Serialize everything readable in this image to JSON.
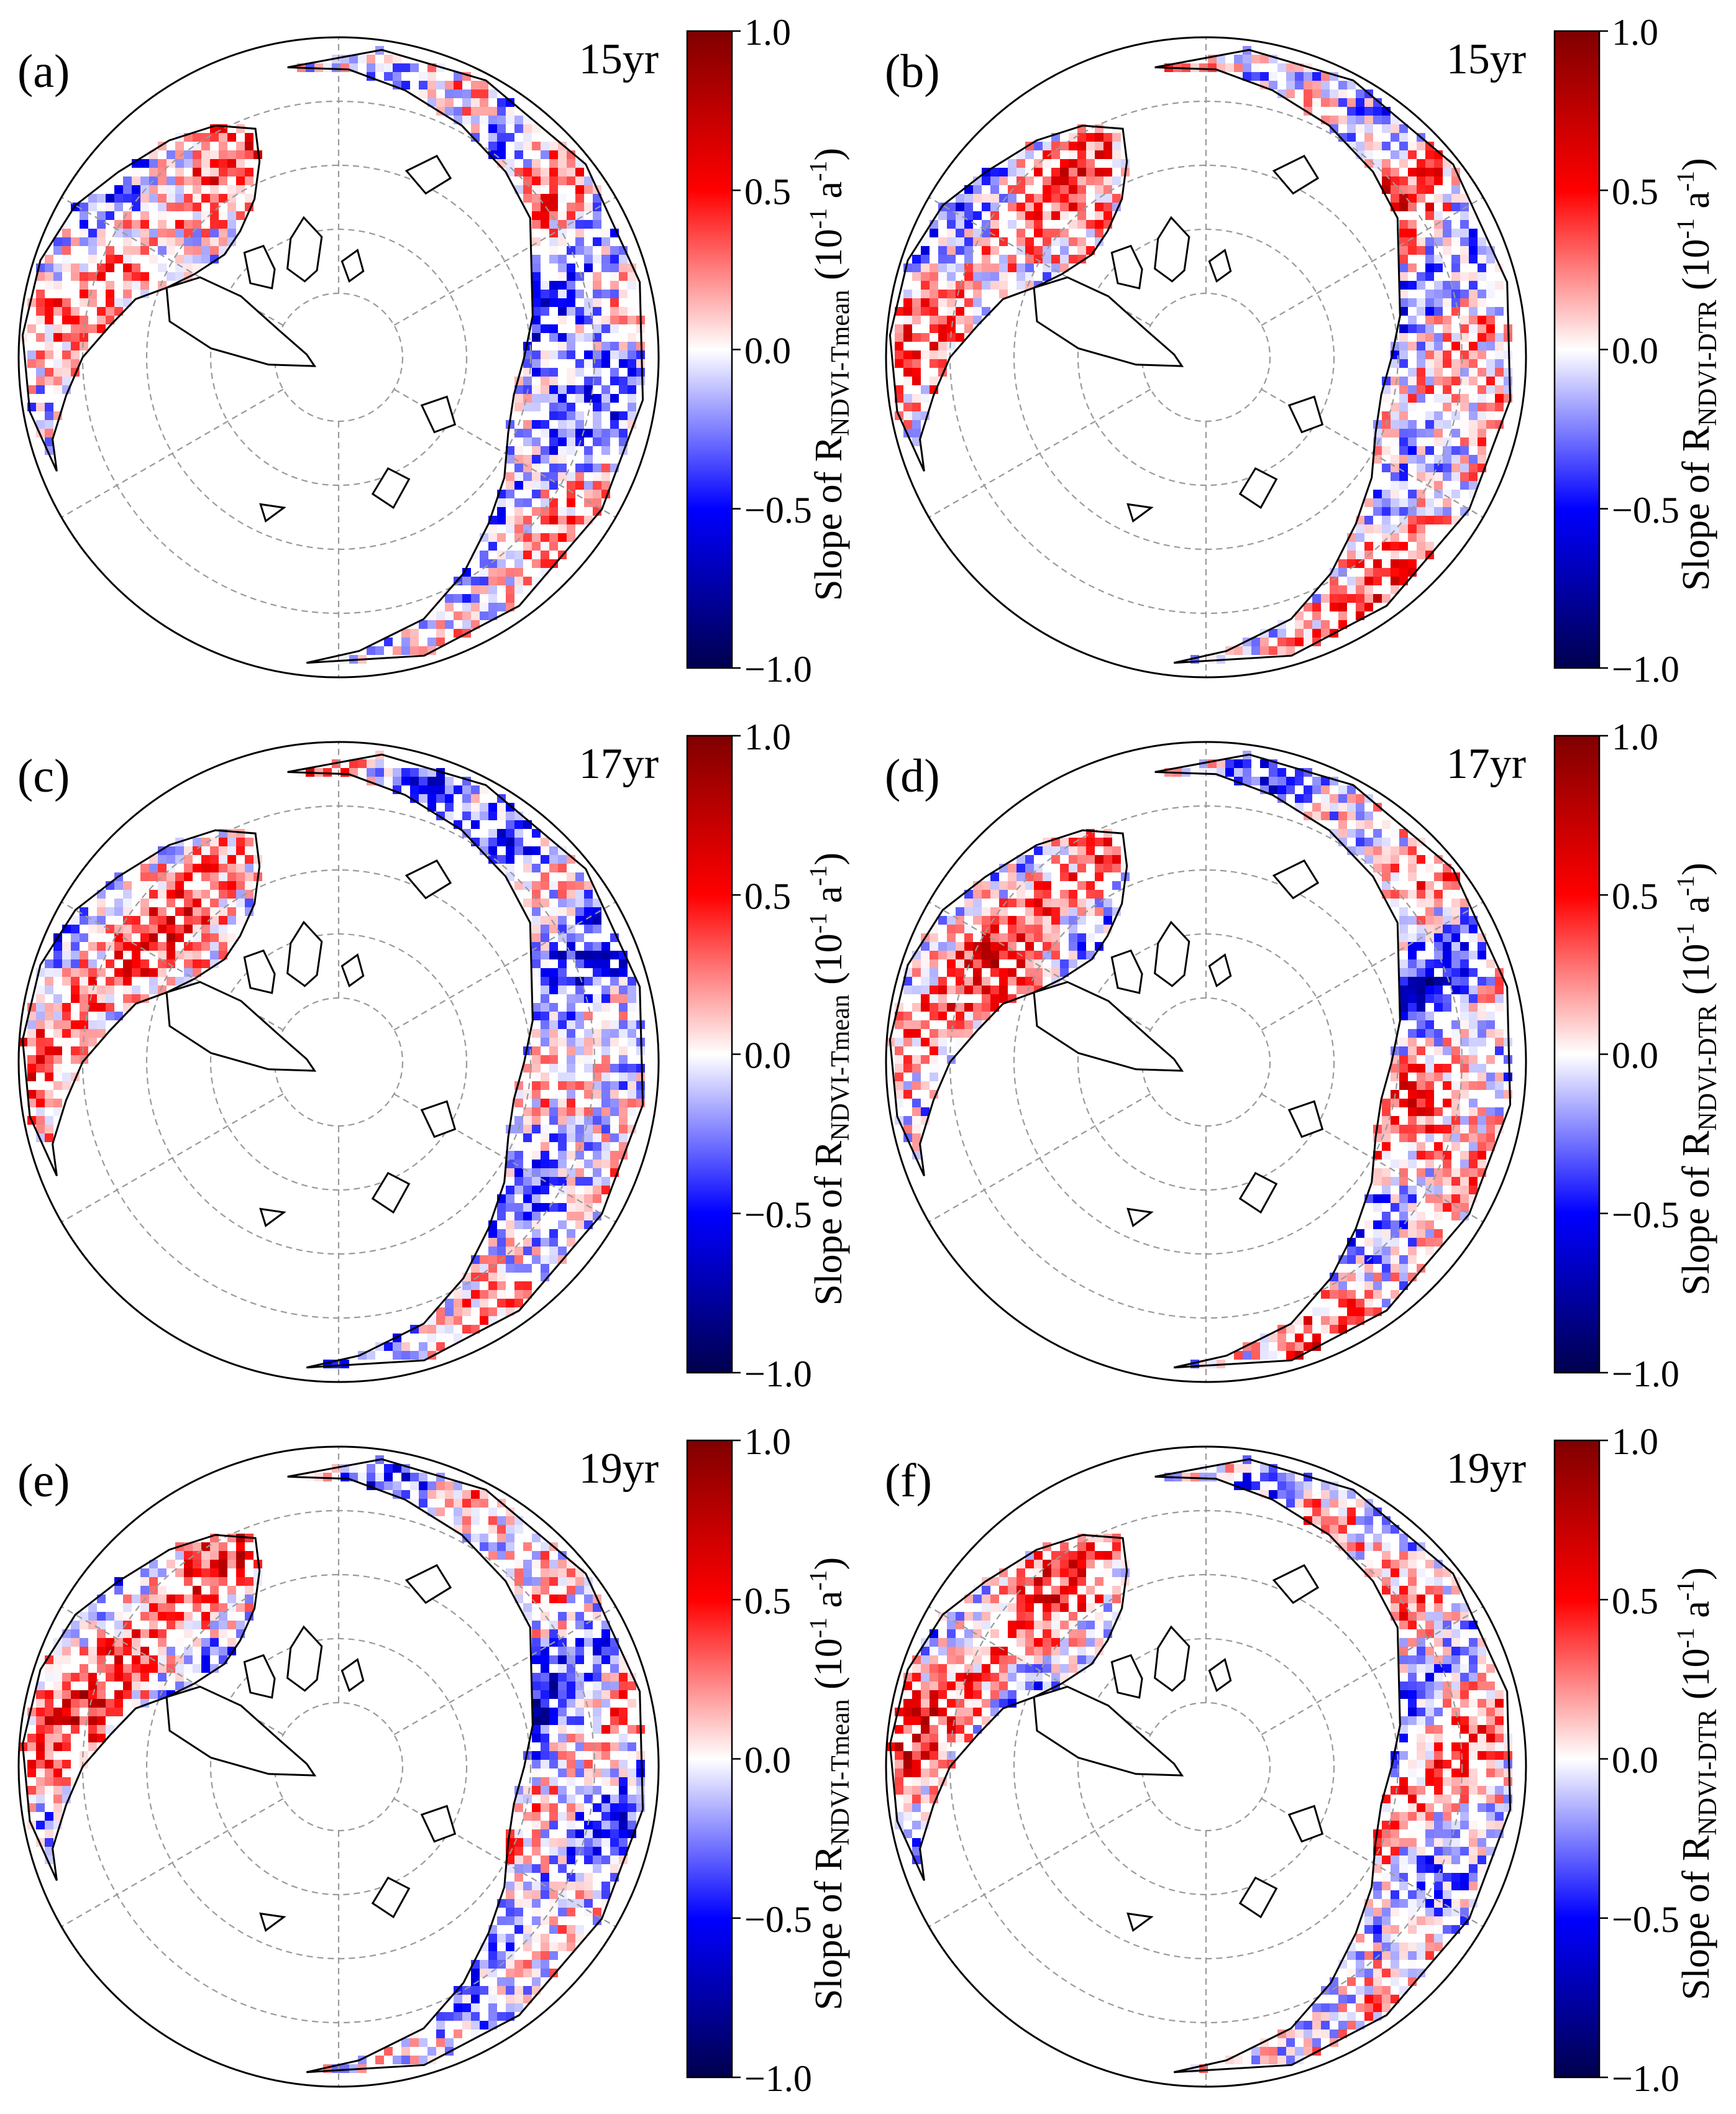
{
  "figure": {
    "panel_count": 6,
    "colormap": "seismic",
    "colormap_stops": [
      "#00004d",
      "#0000ff",
      "#ffffff",
      "#ff0000",
      "#800000"
    ],
    "colorbar_ticks": [
      "1.0",
      "0.5",
      "0.0",
      "−0.5",
      "−1.0"
    ],
    "colorbar_label": {
      "prefix": "Slope of R",
      "unit_open": "(10",
      "unit_exp": "-1",
      "unit_mid": " a",
      "unit_exp2": "-1",
      "unit_close": ")"
    },
    "coastline_color": "#000000",
    "grid_color": "#9a9a9a"
  },
  "chart_data": [
    {
      "type": "heatmap",
      "panel": "(a)",
      "window": "15yr",
      "subscript": "NDVI-Tmean",
      "vmin": -1.0,
      "vmax": 1.0,
      "projection": "north-polar-stereographic"
    },
    {
      "type": "heatmap",
      "panel": "(b)",
      "window": "15yr",
      "subscript": "NDVI-DTR",
      "vmin": -1.0,
      "vmax": 1.0,
      "projection": "north-polar-stereographic"
    },
    {
      "type": "heatmap",
      "panel": "(c)",
      "window": "17yr",
      "subscript": "NDVI-Tmean",
      "vmin": -1.0,
      "vmax": 1.0,
      "projection": "north-polar-stereographic"
    },
    {
      "type": "heatmap",
      "panel": "(d)",
      "window": "17yr",
      "subscript": "NDVI-DTR",
      "vmin": -1.0,
      "vmax": 1.0,
      "projection": "north-polar-stereographic"
    },
    {
      "type": "heatmap",
      "panel": "(e)",
      "window": "19yr",
      "subscript": "NDVI-Tmean",
      "vmin": -1.0,
      "vmax": 1.0,
      "projection": "north-polar-stereographic"
    },
    {
      "type": "heatmap",
      "panel": "(f)",
      "window": "19yr",
      "subscript": "NDVI-DTR",
      "vmin": -1.0,
      "vmax": 1.0,
      "projection": "north-polar-stereographic"
    }
  ]
}
